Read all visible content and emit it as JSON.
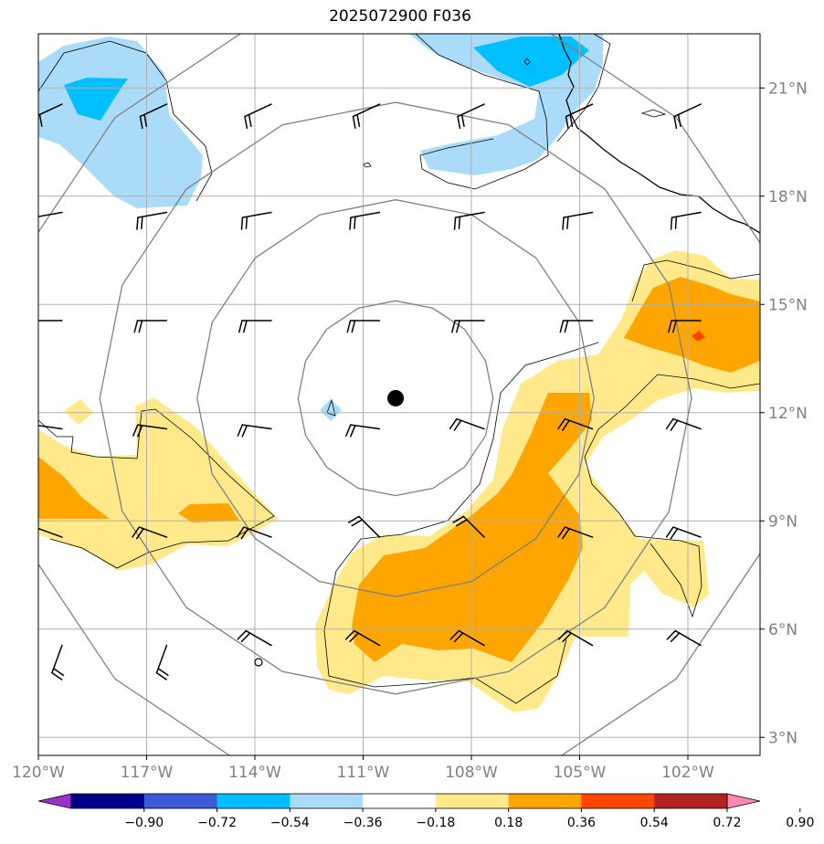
{
  "title": "2025072900 F036",
  "map": {
    "lon_range": [
      -120,
      -100
    ],
    "lat_range": [
      2.5,
      22.5
    ],
    "lon_ticks": [
      {
        "value": -120,
        "label": "120°W"
      },
      {
        "value": -117,
        "label": "117°W"
      },
      {
        "value": -114,
        "label": "114°W"
      },
      {
        "value": -111,
        "label": "111°W"
      },
      {
        "value": -108,
        "label": "108°W"
      },
      {
        "value": -105,
        "label": "105°W"
      },
      {
        "value": -102,
        "label": "102°W"
      }
    ],
    "lat_ticks": [
      {
        "value": 3,
        "label": "3°N"
      },
      {
        "value": 6,
        "label": "6°N"
      },
      {
        "value": 9,
        "label": "9°N"
      },
      {
        "value": 12,
        "label": "12°N"
      },
      {
        "value": 15,
        "label": "15°N"
      },
      {
        "value": 18,
        "label": "18°N"
      },
      {
        "value": 21,
        "label": "21°N"
      }
    ],
    "storm_center": {
      "lon": -110.1,
      "lat": 12.4
    },
    "range_rings_deg": [
      2.7,
      5.5,
      8.2,
      11.0
    ],
    "colors": {
      "grid": "#b0b0b0",
      "ring": "#808080",
      "neg_light": "#aadcfa",
      "neg_mid": "#00bfff",
      "pos_light": "#ffe98a",
      "pos_mid": "#ffa500",
      "pos_high": "#ff4500"
    }
  },
  "colorbar": {
    "boundaries": [
      "−0.90",
      "−0.72",
      "−0.54",
      "−0.36",
      "−0.18",
      "0.18",
      "0.36",
      "0.54",
      "0.72",
      "0.90"
    ],
    "colors": [
      "#9932cc",
      "#00008b",
      "#3b5bd6",
      "#00bfff",
      "#aadcfa",
      "#ffffff",
      "#ffe98a",
      "#ffa500",
      "#ff4500",
      "#b22222",
      "#ff88b0"
    ]
  }
}
